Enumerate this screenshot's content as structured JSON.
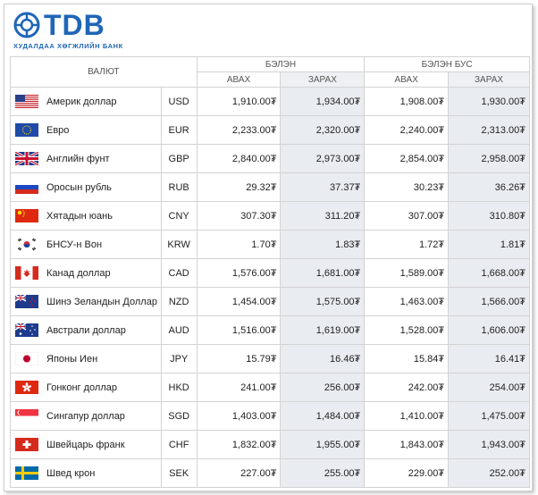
{
  "logo": {
    "brand": "TDB",
    "tagline": "ХУДАЛДАА ХӨГЖЛИЙН БАНК",
    "accent": "#1f66b8"
  },
  "headers": {
    "currency": "ВАЛЮТ",
    "cash": "БЭЛЭН",
    "noncash": "БЭЛЭН БУС",
    "buy": "АВАХ",
    "sell": "ЗАРАХ"
  },
  "rates": [
    {
      "flag": "us-flag-icon",
      "name": "Америк доллар",
      "code": "USD",
      "cash_buy": "1,910.00₮",
      "cash_sell": "1,934.00₮",
      "noncash_buy": "1,908.00₮",
      "noncash_sell": "1,930.00₮"
    },
    {
      "flag": "eu-flag-icon",
      "name": "Евро",
      "code": "EUR",
      "cash_buy": "2,233.00₮",
      "cash_sell": "2,320.00₮",
      "noncash_buy": "2,240.00₮",
      "noncash_sell": "2,313.00₮"
    },
    {
      "flag": "gb-flag-icon",
      "name": "Английн фунт",
      "code": "GBP",
      "cash_buy": "2,840.00₮",
      "cash_sell": "2,973.00₮",
      "noncash_buy": "2,854.00₮",
      "noncash_sell": "2,958.00₮"
    },
    {
      "flag": "ru-flag-icon",
      "name": "Оросын рубль",
      "code": "RUB",
      "cash_buy": "29.32₮",
      "cash_sell": "37.37₮",
      "noncash_buy": "30.23₮",
      "noncash_sell": "36.26₮"
    },
    {
      "flag": "cn-flag-icon",
      "name": "Хятадын юань",
      "code": "CNY",
      "cash_buy": "307.30₮",
      "cash_sell": "311.20₮",
      "noncash_buy": "307.00₮",
      "noncash_sell": "310.80₮"
    },
    {
      "flag": "kr-flag-icon",
      "name": "БНСУ-н Вон",
      "code": "KRW",
      "cash_buy": "1.70₮",
      "cash_sell": "1.83₮",
      "noncash_buy": "1.72₮",
      "noncash_sell": "1.81₮"
    },
    {
      "flag": "ca-flag-icon",
      "name": "Канад доллар",
      "code": "CAD",
      "cash_buy": "1,576.00₮",
      "cash_sell": "1,681.00₮",
      "noncash_buy": "1,589.00₮",
      "noncash_sell": "1,668.00₮"
    },
    {
      "flag": "nz-flag-icon",
      "name": "Шинэ Зеландын Доллар",
      "code": "NZD",
      "cash_buy": "1,454.00₮",
      "cash_sell": "1,575.00₮",
      "noncash_buy": "1,463.00₮",
      "noncash_sell": "1,566.00₮"
    },
    {
      "flag": "au-flag-icon",
      "name": "Австрали доллар",
      "code": "AUD",
      "cash_buy": "1,516.00₮",
      "cash_sell": "1,619.00₮",
      "noncash_buy": "1,528.00₮",
      "noncash_sell": "1,606.00₮"
    },
    {
      "flag": "jp-flag-icon",
      "name": "Японы Иен",
      "code": "JPY",
      "cash_buy": "15.79₮",
      "cash_sell": "16.46₮",
      "noncash_buy": "15.84₮",
      "noncash_sell": "16.41₮"
    },
    {
      "flag": "hk-flag-icon",
      "name": "Гонконг доллар",
      "code": "HKD",
      "cash_buy": "241.00₮",
      "cash_sell": "256.00₮",
      "noncash_buy": "242.00₮",
      "noncash_sell": "254.00₮"
    },
    {
      "flag": "sg-flag-icon",
      "name": "Сингапур доллар",
      "code": "SGD",
      "cash_buy": "1,403.00₮",
      "cash_sell": "1,484.00₮",
      "noncash_buy": "1,410.00₮",
      "noncash_sell": "1,475.00₮"
    },
    {
      "flag": "ch-flag-icon",
      "name": "Швейцарь франк",
      "code": "CHF",
      "cash_buy": "1,832.00₮",
      "cash_sell": "1,955.00₮",
      "noncash_buy": "1,843.00₮",
      "noncash_sell": "1,943.00₮"
    },
    {
      "flag": "se-flag-icon",
      "name": "Швед крон",
      "code": "SEK",
      "cash_buy": "227.00₮",
      "cash_sell": "255.00₮",
      "noncash_buy": "229.00₮",
      "noncash_sell": "252.00₮"
    }
  ]
}
